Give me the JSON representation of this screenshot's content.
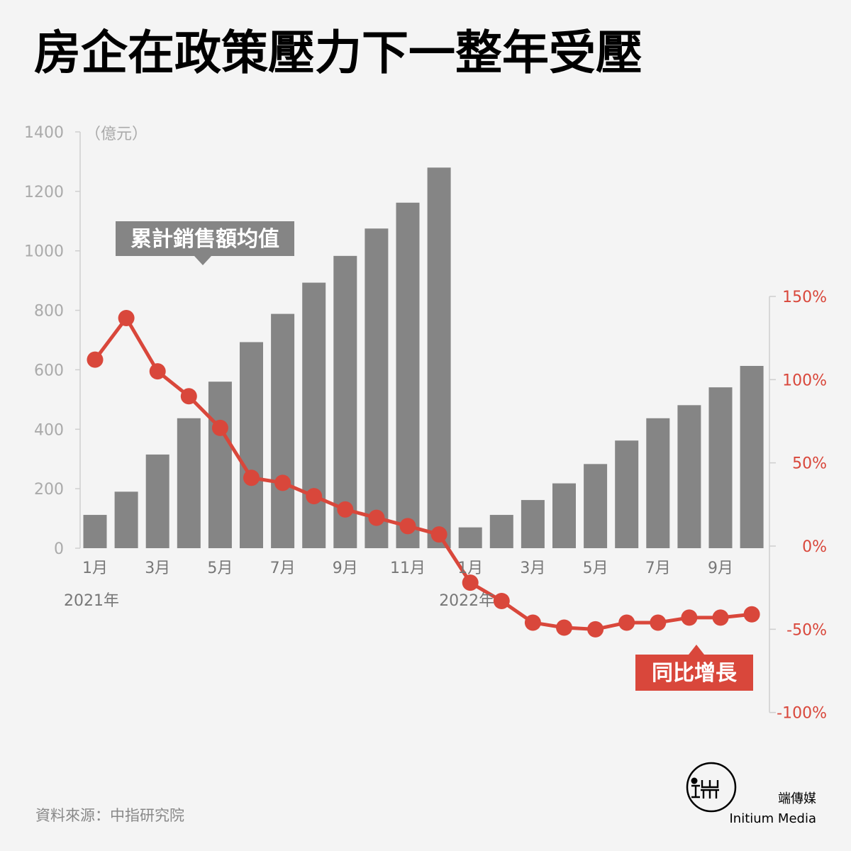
{
  "title": "房企在政策壓力下一整年受壓",
  "source": "資料來源：中指研究院",
  "brand": {
    "cn": "端傳媒",
    "en": "Initium Media"
  },
  "colors": {
    "bar": "#858585",
    "line": "#d9473b",
    "tag_bar": "#858585",
    "tag_line": "#d9473b"
  },
  "chart_data": {
    "type": "bar+line",
    "unit_left": "（億元）",
    "years": [
      {
        "label": "2021年",
        "index": 0
      },
      {
        "label": "2022年",
        "index": 12
      }
    ],
    "x_ticks": [
      {
        "index": 0,
        "label": "1月"
      },
      {
        "index": 2,
        "label": "3月"
      },
      {
        "index": 4,
        "label": "5月"
      },
      {
        "index": 6,
        "label": "7月"
      },
      {
        "index": 8,
        "label": "9月"
      },
      {
        "index": 10,
        "label": "11月"
      },
      {
        "index": 12,
        "label": "1月"
      },
      {
        "index": 14,
        "label": "3月"
      },
      {
        "index": 16,
        "label": "5月"
      },
      {
        "index": 18,
        "label": "7月"
      },
      {
        "index": 20,
        "label": "9月"
      }
    ],
    "y_left": {
      "min": 0,
      "max": 1400,
      "ticks": [
        "0",
        "200",
        "400",
        "600",
        "800",
        "1000",
        "1200",
        "1400"
      ]
    },
    "y_right": {
      "min": -100,
      "max": 150,
      "ticks": [
        "-100%",
        "-50%",
        "0%",
        "50%",
        "100%",
        "150%"
      ]
    },
    "series": [
      {
        "name": "累計銷售額均值",
        "type": "bar",
        "axis": "left",
        "values": [
          112,
          190,
          315,
          437,
          560,
          693,
          788,
          893,
          983,
          1075,
          1162,
          1280,
          70,
          112,
          162,
          218,
          283,
          362,
          437,
          481,
          541,
          613
        ]
      },
      {
        "name": "同比增長",
        "type": "line",
        "axis": "right",
        "values": [
          112,
          137,
          105,
          90,
          71,
          41,
          38,
          30,
          22,
          17,
          12,
          7,
          -22,
          -33,
          -46,
          -49,
          -50,
          -46,
          -46,
          -43,
          -43,
          -41
        ]
      }
    ]
  }
}
